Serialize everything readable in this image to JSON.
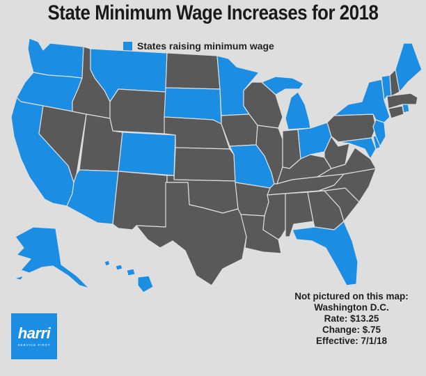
{
  "title": "State Minimum Wage Increases for 2018",
  "legend": {
    "label": "States raising minimum wage",
    "color": "#1b8de3"
  },
  "colors": {
    "raising": "#1b8de3",
    "not_raising": "#595959",
    "border": "#dedede",
    "background": "#dedede"
  },
  "states_raising": [
    "AK",
    "AZ",
    "CA",
    "CO",
    "FL",
    "HI",
    "ME",
    "MI",
    "MN",
    "MO",
    "MT",
    "NJ",
    "NY",
    "OH",
    "OR",
    "RI",
    "SD",
    "VT",
    "WA",
    "MD",
    "DE"
  ],
  "note": {
    "heading": "Not pictured on this map:",
    "place": "Washington D.C.",
    "rate": "Rate: $13.25",
    "change": "Change: $.75",
    "effective": "Effective: 7/1/18"
  },
  "logo": {
    "name": "harri",
    "tagline": "SERVICE FIRST"
  }
}
